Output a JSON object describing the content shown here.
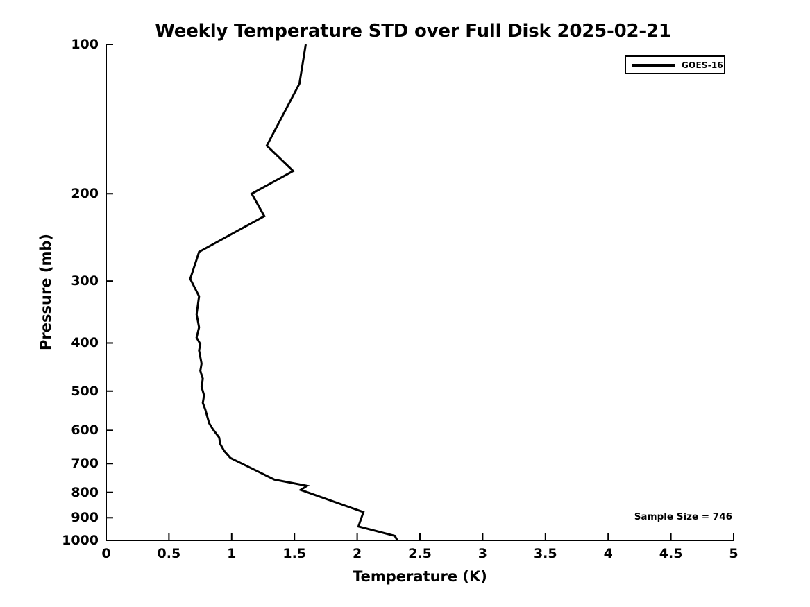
{
  "chart_data": {
    "type": "line",
    "title": "Weekly Temperature STD over Full Disk 2025-02-21",
    "xlabel": "Temperature (K)",
    "ylabel": "Pressure (mb)",
    "xlim": [
      0,
      5
    ],
    "ylim": [
      100,
      1000
    ],
    "y_scale": "log",
    "y_inverted": true,
    "grid": false,
    "x_ticks": [
      0,
      0.5,
      1,
      1.5,
      2,
      2.5,
      3,
      3.5,
      4,
      4.5,
      5
    ],
    "y_ticks": [
      100,
      200,
      300,
      400,
      500,
      600,
      700,
      800,
      900,
      1000
    ],
    "legend": {
      "position": "top-right",
      "entries": [
        {
          "label": "GOES-16",
          "color": "#000000",
          "line_width": 3
        }
      ]
    },
    "annotations": [
      {
        "text": "Sample Size = 746",
        "position": "bottom-right"
      }
    ],
    "series": [
      {
        "name": "GOES-16",
        "color": "#000000",
        "line_width": 3,
        "points_format": [
          "temperature_K",
          "pressure_mb"
        ],
        "points": [
          [
            1.59,
            100
          ],
          [
            1.54,
            120
          ],
          [
            1.28,
            160
          ],
          [
            1.49,
            180
          ],
          [
            1.16,
            200
          ],
          [
            1.26,
            222
          ],
          [
            0.74,
            262
          ],
          [
            0.67,
            297
          ],
          [
            0.74,
            322
          ],
          [
            0.72,
            350
          ],
          [
            0.74,
            372
          ],
          [
            0.72,
            390
          ],
          [
            0.75,
            402
          ],
          [
            0.74,
            414
          ],
          [
            0.76,
            440
          ],
          [
            0.75,
            455
          ],
          [
            0.77,
            472
          ],
          [
            0.76,
            490
          ],
          [
            0.78,
            510
          ],
          [
            0.77,
            528
          ],
          [
            0.79,
            545
          ],
          [
            0.82,
            580
          ],
          [
            0.85,
            597
          ],
          [
            0.9,
            620
          ],
          [
            0.91,
            640
          ],
          [
            0.94,
            660
          ],
          [
            0.99,
            682
          ],
          [
            1.34,
            754
          ],
          [
            1.6,
            776
          ],
          [
            1.55,
            791
          ],
          [
            2.05,
            877
          ],
          [
            2.01,
            937
          ],
          [
            2.3,
            979
          ],
          [
            2.32,
            1000
          ]
        ]
      }
    ]
  },
  "colors": {
    "background": "#ffffff",
    "axis": "#000000",
    "text": "#000000",
    "series_goes16": "#000000"
  }
}
